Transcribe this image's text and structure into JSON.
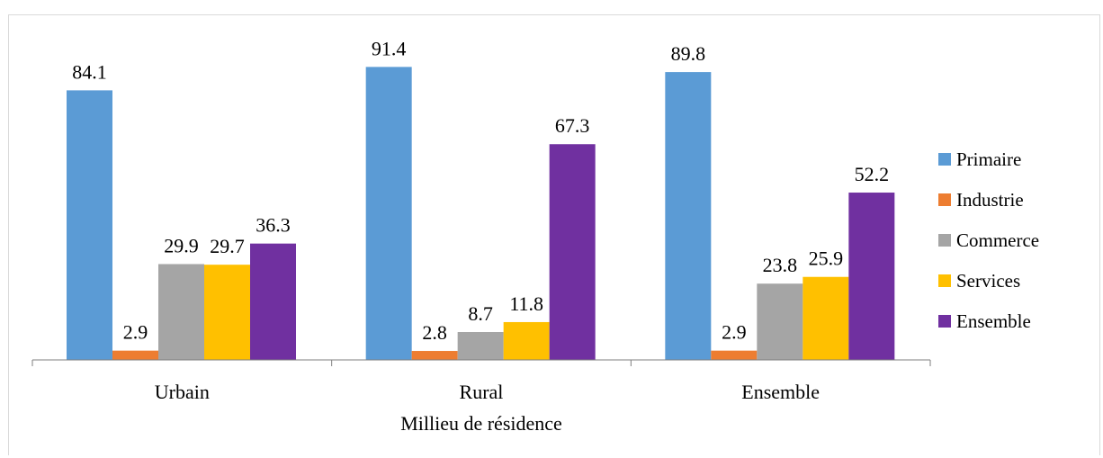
{
  "chart_data": {
    "type": "bar",
    "title": "",
    "xlabel": "Millieu de résidence",
    "ylabel": "",
    "categories": [
      "Urbain",
      "Rural",
      "Ensemble"
    ],
    "series": [
      {
        "name": "Primaire",
        "color": "#5b9bd5",
        "values": [
          84.1,
          91.4,
          89.8
        ]
      },
      {
        "name": "Industrie",
        "color": "#ed7d31",
        "values": [
          2.9,
          2.8,
          2.9
        ]
      },
      {
        "name": "Commerce",
        "color": "#a5a5a5",
        "values": [
          29.9,
          8.7,
          23.8
        ]
      },
      {
        "name": "Services",
        "color": "#ffc000",
        "values": [
          29.7,
          11.8,
          25.9
        ]
      },
      {
        "name": "Ensemble",
        "color": "#7030a0",
        "values": [
          36.3,
          67.3,
          52.2
        ]
      }
    ],
    "ylim": [
      0,
      100
    ],
    "grid": false,
    "legend_position": "right"
  }
}
